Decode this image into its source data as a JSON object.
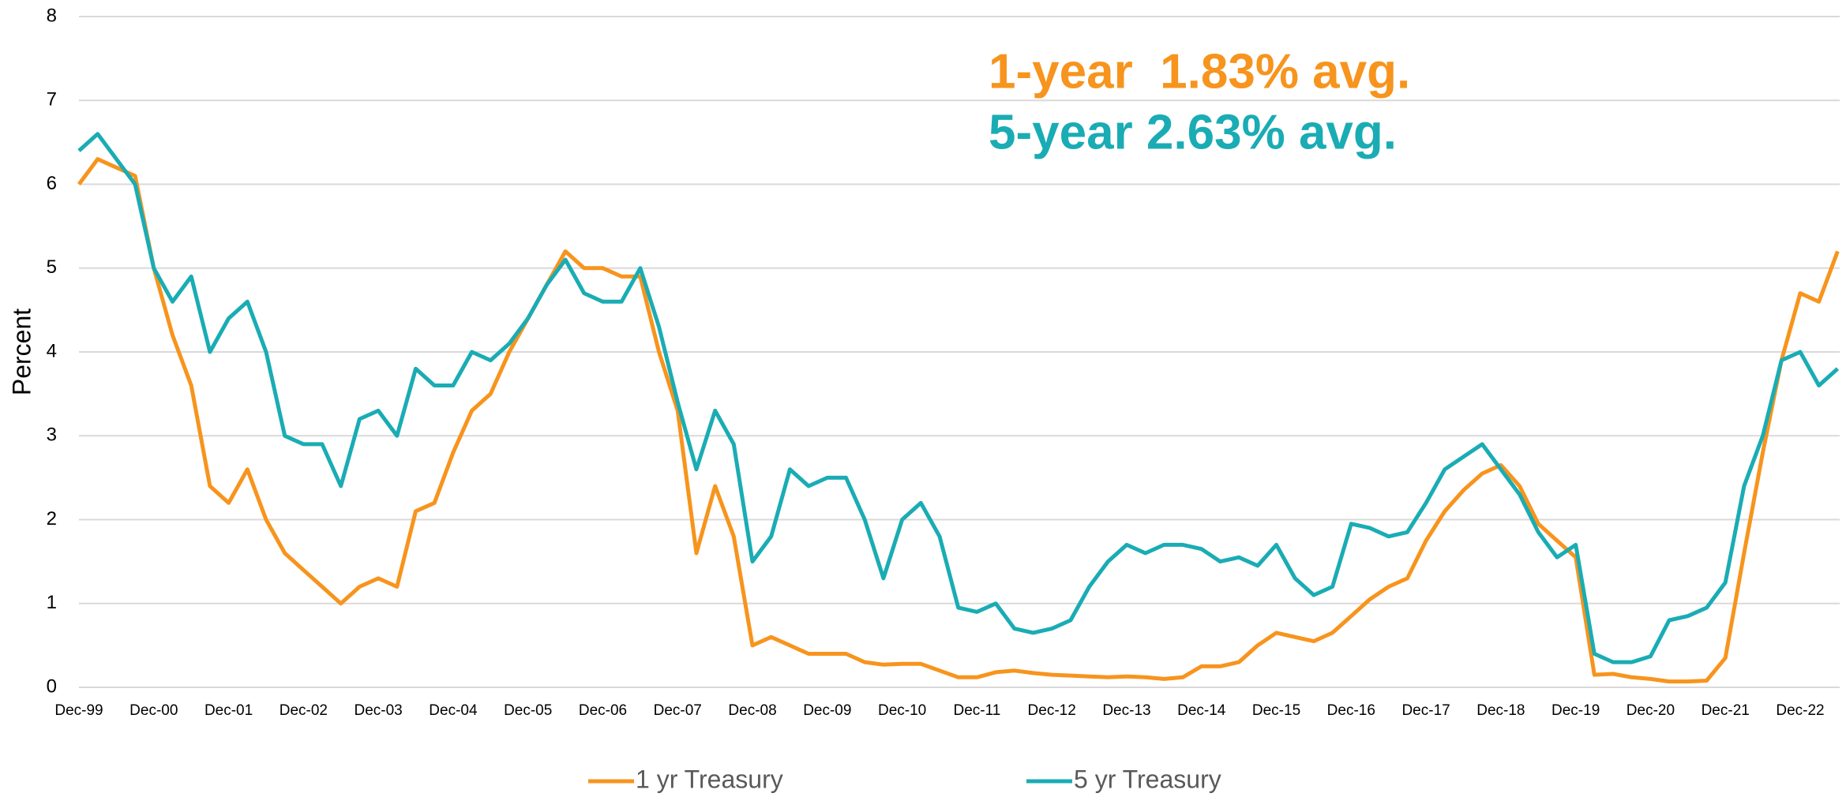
{
  "chart_data": {
    "type": "line",
    "y_label": "Percent",
    "categories": [
      "Dec-99",
      null,
      null,
      null,
      "Dec-00",
      null,
      null,
      null,
      "Dec-01",
      null,
      null,
      null,
      "Dec-02",
      null,
      null,
      null,
      "Dec-03",
      null,
      null,
      null,
      "Dec-04",
      null,
      null,
      null,
      "Dec-05",
      null,
      null,
      null,
      "Dec-06",
      null,
      null,
      null,
      "Dec-07",
      null,
      null,
      null,
      "Dec-08",
      null,
      null,
      null,
      "Dec-09",
      null,
      null,
      null,
      "Dec-10",
      null,
      null,
      null,
      "Dec-11",
      null,
      null,
      null,
      "Dec-12",
      null,
      null,
      null,
      "Dec-13",
      null,
      null,
      null,
      "Dec-14",
      null,
      null,
      null,
      "Dec-15",
      null,
      null,
      null,
      "Dec-16",
      null,
      null,
      null,
      "Dec-17",
      null,
      null,
      null,
      "Dec-18",
      null,
      null,
      null,
      "Dec-19",
      null,
      null,
      null,
      "Dec-20",
      null,
      null,
      null,
      "Dec-21",
      null,
      null,
      null,
      "Dec-22",
      null,
      null
    ],
    "series": [
      {
        "name": "1 yr Treasury",
        "color": "#f7941d",
        "values": [
          6.0,
          6.3,
          6.2,
          6.1,
          5.0,
          4.2,
          3.6,
          2.4,
          2.2,
          2.6,
          2.0,
          1.6,
          1.4,
          1.2,
          1.0,
          1.2,
          1.3,
          1.2,
          2.1,
          2.2,
          2.8,
          3.3,
          3.5,
          4.0,
          4.4,
          4.8,
          5.2,
          5.0,
          5.0,
          4.9,
          4.9,
          4.0,
          3.3,
          1.6,
          2.4,
          1.8,
          0.5,
          0.6,
          0.5,
          0.4,
          0.4,
          0.4,
          0.3,
          0.27,
          0.28,
          0.28,
          0.2,
          0.12,
          0.12,
          0.18,
          0.2,
          0.17,
          0.15,
          0.14,
          0.13,
          0.12,
          0.13,
          0.12,
          0.1,
          0.12,
          0.25,
          0.25,
          0.3,
          0.5,
          0.65,
          0.6,
          0.55,
          0.65,
          0.85,
          1.05,
          1.2,
          1.3,
          1.75,
          2.1,
          2.35,
          2.55,
          2.65,
          2.4,
          1.95,
          1.75,
          1.55,
          0.15,
          0.16,
          0.12,
          0.1,
          0.07,
          0.07,
          0.08,
          0.35,
          1.6,
          2.8,
          3.9,
          4.7,
          4.6,
          5.2
        ]
      },
      {
        "name": "5 yr Treasury",
        "color": "#1aacb4",
        "values": [
          6.4,
          6.6,
          6.3,
          6.0,
          5.0,
          4.6,
          4.9,
          4.0,
          4.4,
          4.6,
          4.0,
          3.0,
          2.9,
          2.9,
          2.4,
          3.2,
          3.3,
          3.0,
          3.8,
          3.6,
          3.6,
          4.0,
          3.9,
          4.1,
          4.4,
          4.8,
          5.1,
          4.7,
          4.6,
          4.6,
          5.0,
          4.3,
          3.4,
          2.6,
          3.3,
          2.9,
          1.5,
          1.8,
          2.6,
          2.4,
          2.5,
          2.5,
          2.0,
          1.3,
          2.0,
          2.2,
          1.8,
          0.95,
          0.9,
          1.0,
          0.7,
          0.65,
          0.7,
          0.8,
          1.2,
          1.5,
          1.7,
          1.6,
          1.7,
          1.7,
          1.65,
          1.5,
          1.55,
          1.45,
          1.7,
          1.3,
          1.1,
          1.2,
          1.95,
          1.9,
          1.8,
          1.85,
          2.2,
          2.6,
          2.75,
          2.9,
          2.6,
          2.3,
          1.85,
          1.55,
          1.7,
          0.4,
          0.3,
          0.3,
          0.37,
          0.8,
          0.85,
          0.95,
          1.25,
          2.4,
          3.0,
          3.9,
          4.0,
          3.6,
          3.8
        ]
      }
    ],
    "annotations": [
      {
        "text": "1-year  1.83% avg.",
        "color": "#f7941d"
      },
      {
        "text": "5-year 2.63% avg.",
        "color": "#1aacb4"
      }
    ],
    "ylim": [
      0,
      8
    ],
    "yticks": [
      0,
      1,
      2,
      3,
      4,
      5,
      6,
      7,
      8
    ],
    "grid": true,
    "legend": "bottom"
  }
}
